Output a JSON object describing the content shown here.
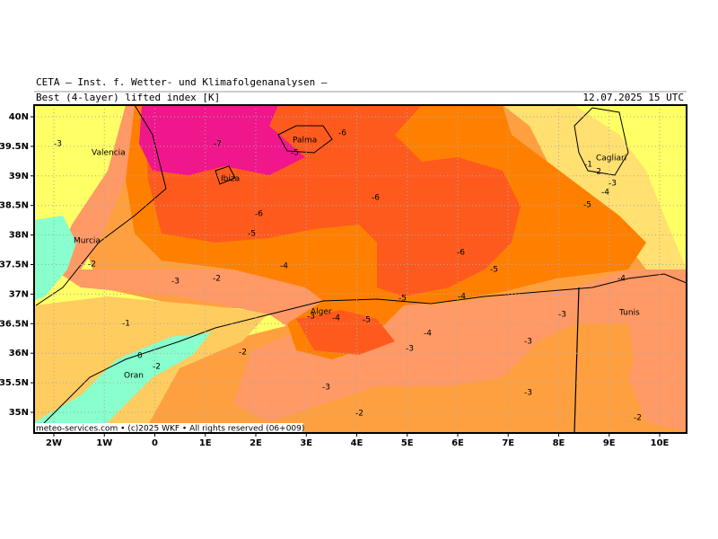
{
  "header": {
    "institute": "CETA — Inst. f. Wetter- und Klimafolgenanalysen —",
    "product": "Best (4-layer) lifted index [K]",
    "valid": "12.07.2025 15 UTC"
  },
  "axes": {
    "latitudes": [
      "40N",
      "39.5N",
      "39N",
      "38.5N",
      "38N",
      "37.5N",
      "37N",
      "36.5N",
      "36N",
      "35.5N",
      "35N"
    ],
    "longitudes": [
      "2W",
      "1W",
      "0",
      "1E",
      "2E",
      "3E",
      "4E",
      "5E",
      "6E",
      "7E",
      "8E",
      "9E",
      "10E"
    ]
  },
  "places": [
    "Valencia",
    "Palma",
    "Ibiza",
    "Murcia",
    "Alger",
    "Oran",
    "Cagliari",
    "Tunis"
  ],
  "contour_labels": [
    -3,
    -7,
    -6,
    -5,
    -6,
    -6,
    -5,
    -4,
    -3,
    -2,
    -2,
    -1,
    0,
    -2,
    -2,
    -3,
    -4,
    -5,
    -3,
    -4,
    -5,
    -4,
    -6,
    -5,
    -3,
    -2,
    -3,
    -3,
    -4,
    -5,
    -4,
    -3,
    -2,
    -1,
    -3,
    -2
  ],
  "footer": "meteo-services.com • (c)2025 WKF • All rights reserved (06+009)"
}
